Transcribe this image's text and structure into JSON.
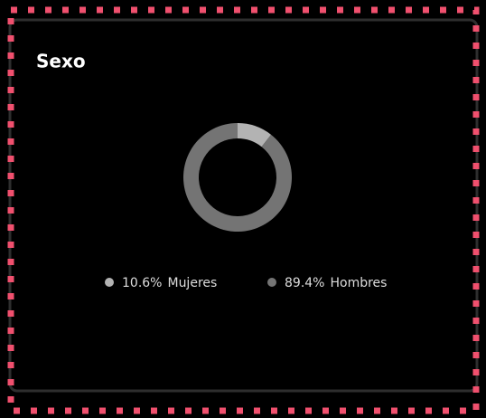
{
  "chart_data": {
    "type": "pie",
    "title": "Sexo",
    "categories": [
      "Mujeres",
      "Hombres"
    ],
    "values": [
      10.6,
      89.4
    ],
    "value_labels": [
      "10.6%",
      "89.4%"
    ],
    "colors": [
      "#b3b3b3",
      "#747474"
    ],
    "donut": true,
    "legend": "bottom"
  }
}
